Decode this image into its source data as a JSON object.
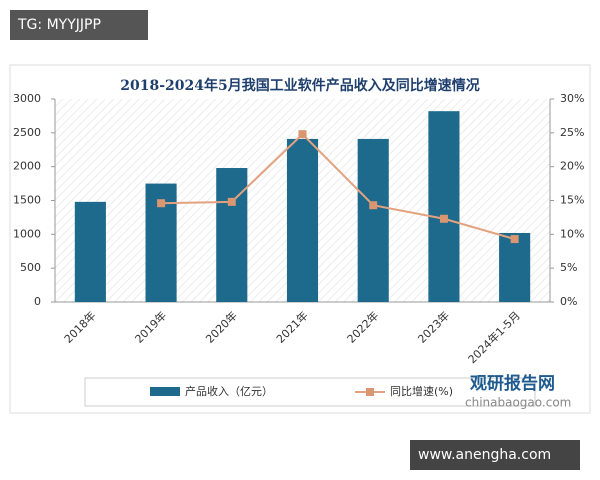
{
  "chart_data": {
    "type": "bar",
    "title": "2018-2024年5月我国工业软件产品收入及同比增速情况",
    "categories": [
      "2018年",
      "2019年",
      "2020年",
      "2021年",
      "2022年",
      "2023年",
      "2024年1-5月"
    ],
    "series": [
      {
        "name": "产品收入（亿元）",
        "type": "bar",
        "color": "#1d6a8c",
        "values": [
          1480,
          1750,
          1980,
          2410,
          2410,
          2820,
          1020
        ]
      },
      {
        "name": "同比增速(%)",
        "type": "line",
        "axis": "y2",
        "color": "#e3a27f",
        "values": [
          null,
          14.6,
          14.8,
          24.8,
          14.3,
          12.3,
          9.3
        ]
      }
    ],
    "ylim": [
      0,
      3000
    ],
    "yticks": [
      0,
      500,
      1000,
      1500,
      2000,
      2500,
      3000
    ],
    "y2lim": [
      0,
      30
    ],
    "y2ticks": [
      {
        "value": 0,
        "label": "0%"
      },
      {
        "value": 5,
        "label": "5%"
      },
      {
        "value": 10,
        "label": "10%"
      },
      {
        "value": 15,
        "label": "15%"
      },
      {
        "value": 20,
        "label": "20%"
      },
      {
        "value": 25,
        "label": "25%"
      },
      {
        "value": 30,
        "label": "30%"
      }
    ],
    "legend": "bottom",
    "annotations": [
      "TG: MYYJJPP",
      "观研报告网",
      "chinabaogao.com",
      "www.anengha.com"
    ]
  }
}
